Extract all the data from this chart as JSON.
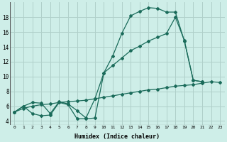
{
  "xlabel": "Humidex (Indice chaleur)",
  "bg_color": "#ceeee8",
  "grid_color": "#b0d0ca",
  "line_color": "#1a6b5a",
  "xlim": [
    -0.5,
    23.5
  ],
  "ylim": [
    3.5,
    20.0
  ],
  "xticks": [
    0,
    1,
    2,
    3,
    4,
    5,
    6,
    7,
    8,
    9,
    10,
    11,
    12,
    13,
    14,
    15,
    16,
    17,
    18,
    19,
    20,
    21,
    22,
    23
  ],
  "yticks": [
    4,
    6,
    8,
    10,
    12,
    14,
    16,
    18
  ],
  "line1_x": [
    0,
    1,
    2,
    3,
    4,
    5,
    6,
    7,
    8,
    9,
    10,
    11,
    12,
    13,
    14,
    15,
    16,
    17,
    18,
    19,
    20,
    21
  ],
  "line1_y": [
    5.2,
    6.0,
    5.0,
    4.7,
    4.8,
    6.5,
    6.2,
    4.3,
    4.3,
    4.4,
    10.5,
    12.8,
    15.8,
    18.2,
    18.8,
    19.3,
    19.2,
    18.7,
    18.7,
    14.8,
    9.5,
    9.3
  ],
  "line2_x": [
    0,
    1,
    2,
    3,
    4,
    5,
    6,
    7,
    8,
    9,
    10,
    11,
    12,
    13,
    14,
    15,
    16,
    17,
    18,
    19,
    20,
    21,
    22,
    23
  ],
  "line2_y": [
    5.2,
    5.7,
    6.0,
    6.2,
    6.3,
    6.5,
    6.6,
    6.7,
    6.8,
    7.0,
    7.2,
    7.4,
    7.6,
    7.8,
    8.0,
    8.2,
    8.3,
    8.5,
    8.7,
    8.8,
    8.9,
    9.1,
    9.3,
    9.2
  ],
  "line3_x": [
    0,
    1,
    2,
    3,
    4,
    5,
    6,
    7,
    8,
    9,
    10,
    11,
    12,
    13,
    14,
    15,
    16,
    17,
    18,
    19,
    20,
    21
  ],
  "line3_y": [
    5.2,
    6.0,
    6.5,
    6.4,
    5.0,
    6.6,
    6.3,
    5.4,
    4.4,
    7.0,
    10.5,
    11.5,
    12.5,
    13.5,
    14.1,
    14.8,
    15.3,
    15.8,
    18.0,
    14.9,
    9.5,
    9.3
  ]
}
